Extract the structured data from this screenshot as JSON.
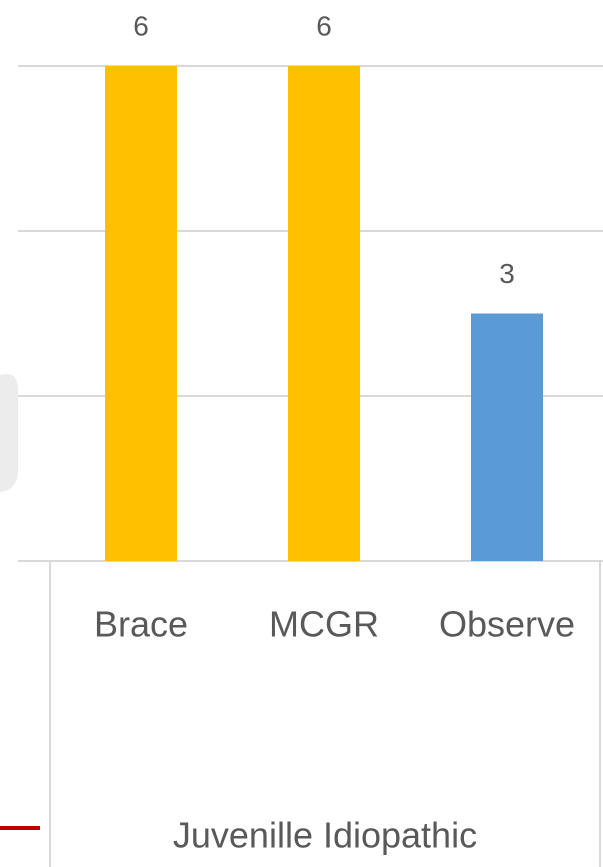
{
  "chart_data": {
    "type": "bar",
    "categories": [
      "Brace",
      "MCGR",
      "Observe"
    ],
    "values": [
      6,
      6,
      3
    ],
    "colors": [
      "#ffc000",
      "#ffc000",
      "#5b9bd5"
    ],
    "group": "Juvenille Idiopathic",
    "ylim": [
      0,
      6
    ],
    "yticks": [
      0,
      2,
      4,
      6
    ],
    "grid": true
  }
}
